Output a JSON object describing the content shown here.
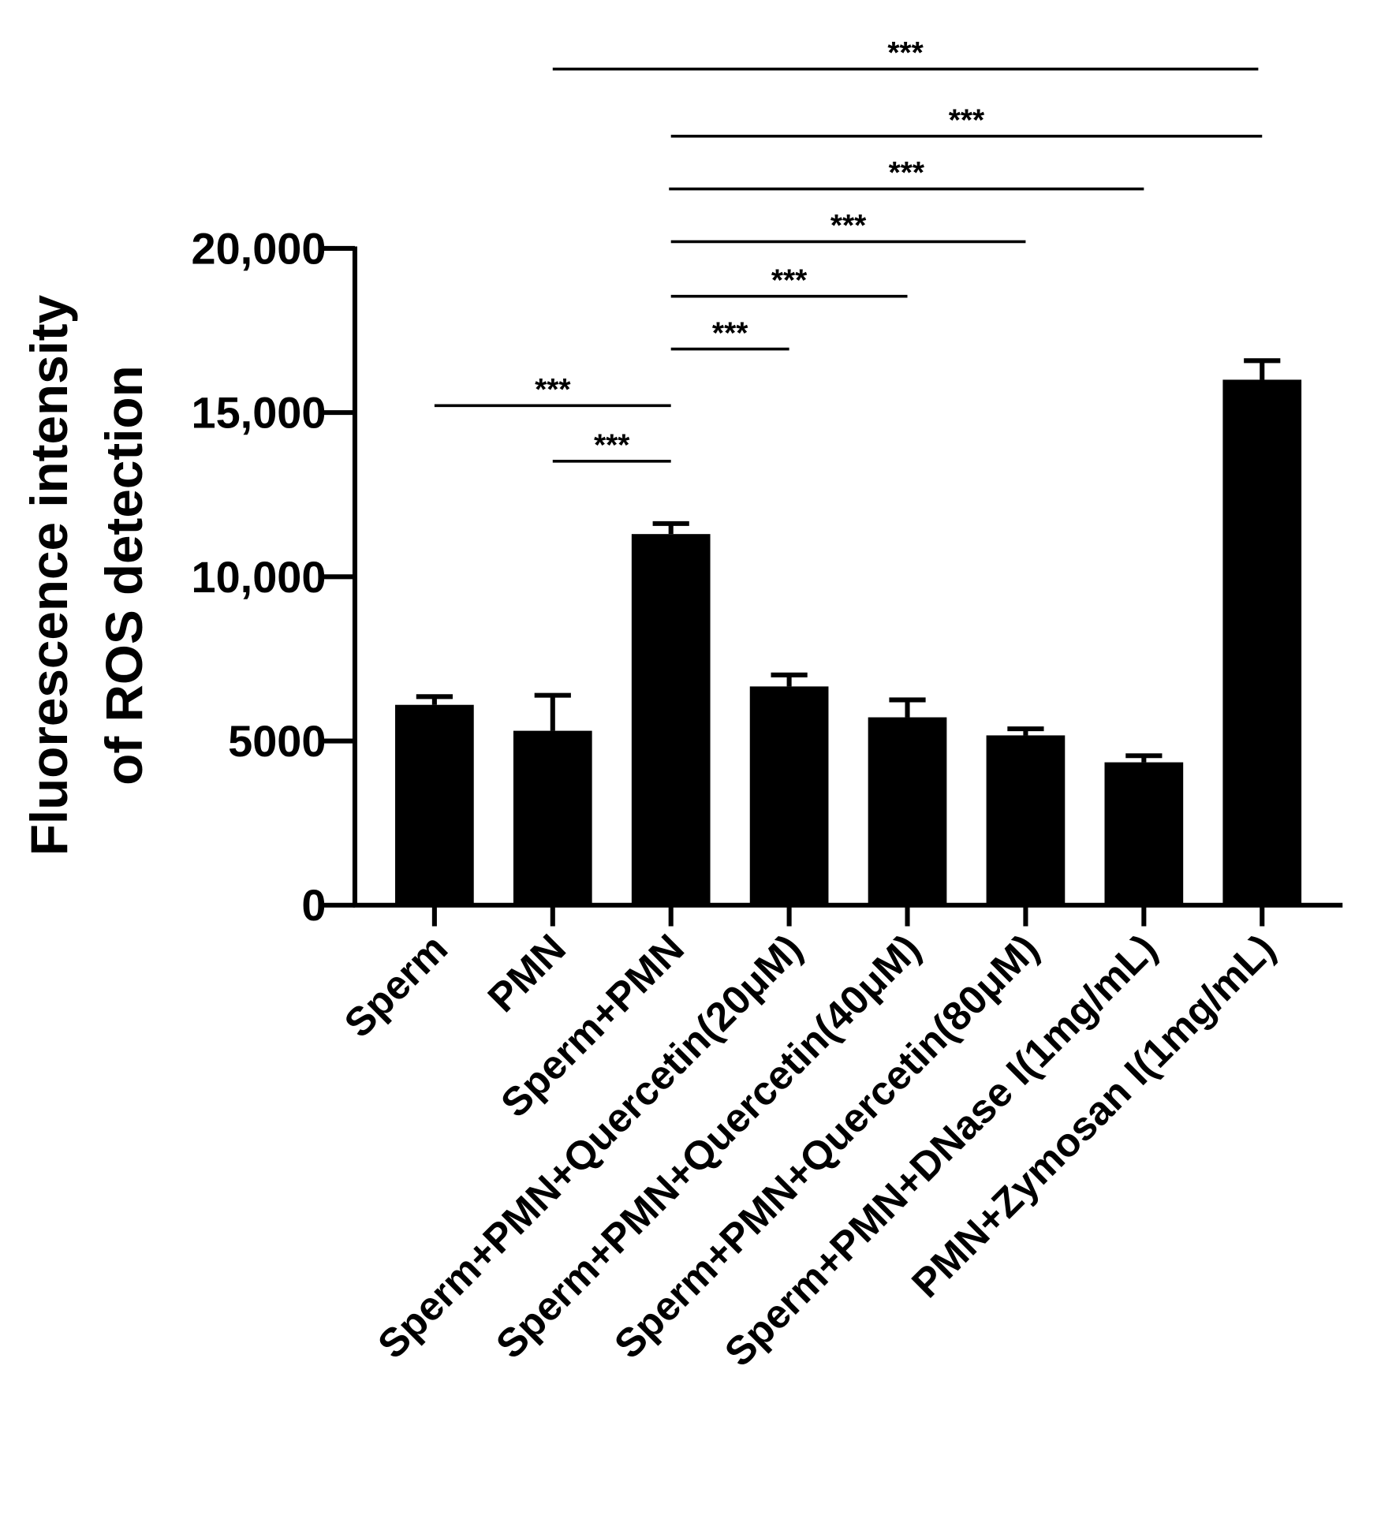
{
  "chart_data": {
    "type": "bar",
    "y_label": [
      "Fluorescence intensity",
      "of ROS detection"
    ],
    "categories": [
      "Sperm",
      "PMN",
      "Sperm+PMN",
      "Sperm+PMN+Quercetin(20μM)",
      "Sperm+PMN+Quercetin(40μM)",
      "Sperm+PMN+Quercetin(80μM)",
      "Sperm+PMN+DNase I(1mg/mL)",
      "PMN+Zymosan I(1mg/mL)"
    ],
    "values": [
      6100,
      5310,
      11300,
      6660,
      5720,
      5170,
      4350,
      16000
    ],
    "errors": [
      250,
      1080,
      320,
      350,
      530,
      200,
      200,
      580
    ],
    "color": "#000000",
    "ylim": [
      0,
      20000
    ],
    "yticks": [
      0,
      5000,
      {
        "value": 10000,
        "label": "10,000"
      },
      {
        "value": 15000,
        "label": "15,000"
      },
      {
        "value": 20000,
        "label": "20,000"
      }
    ],
    "comparisons": [
      {
        "from": "PMN",
        "to": "Sperm+PMN",
        "label": "***"
      },
      {
        "from": "Sperm",
        "to": "Sperm+PMN",
        "label": "***"
      },
      {
        "from": "Sperm+PMN",
        "to": "Sperm+PMN+Quercetin(20μM)",
        "label": "***"
      },
      {
        "from": "Sperm+PMN",
        "to": "Sperm+PMN+Quercetin(40μM)",
        "label": "***"
      },
      {
        "from": "Sperm+PMN",
        "to": "Sperm+PMN+Quercetin(80μM)",
        "label": "***"
      },
      {
        "from": "Sperm+PMN",
        "to": "Sperm+PMN+DNase I(1mg/mL)",
        "label": "***"
      },
      {
        "from": "Sperm+PMN",
        "to": "PMN+Zymosan I(1mg/mL)",
        "label": "***"
      },
      {
        "from": "PMN",
        "to": "PMN+Zymosan I(1mg/mL)",
        "label": "***"
      }
    ]
  }
}
